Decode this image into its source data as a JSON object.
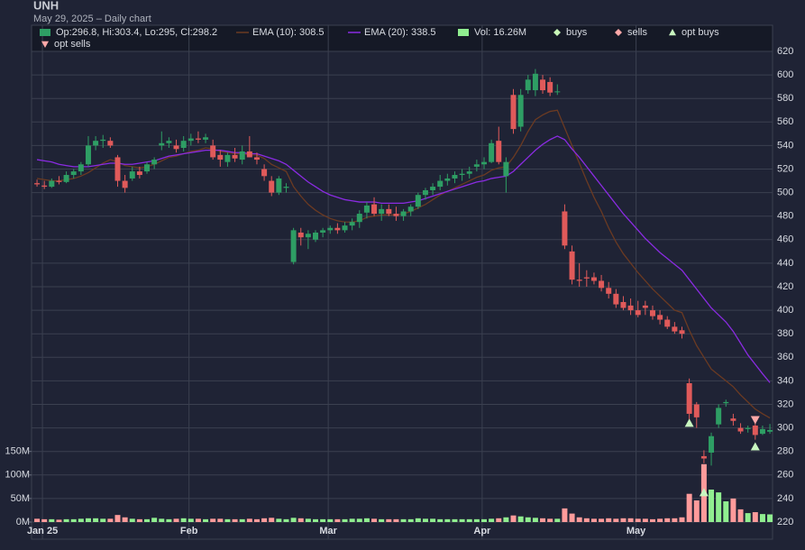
{
  "chart_data": {
    "type": "candlestick",
    "title": "UNH",
    "subtitle": "May 29, 2025 – Daily chart",
    "categories": [
      "Jan 25",
      null,
      null,
      null,
      null,
      null,
      null,
      null,
      null,
      null,
      null,
      null,
      null,
      null,
      null,
      null,
      null,
      null,
      null,
      null,
      "Feb",
      null,
      null,
      null,
      null,
      null,
      null,
      null,
      null,
      null,
      null,
      null,
      null,
      null,
      null,
      null,
      null,
      null,
      null,
      "Mar",
      null,
      null,
      null,
      null,
      null,
      null,
      null,
      null,
      null,
      null,
      null,
      null,
      null,
      null,
      null,
      null,
      null,
      null,
      null,
      null,
      "Apr",
      null,
      null,
      null,
      null,
      null,
      null,
      null,
      null,
      null,
      null,
      null,
      null,
      null,
      null,
      null,
      null,
      null,
      null,
      null,
      null,
      "May",
      null,
      null,
      null,
      null,
      null,
      null,
      null,
      null,
      null,
      null,
      null,
      null,
      null,
      null,
      null,
      null,
      null,
      null,
      null
    ],
    "ohlc": {
      "name": "Op:296.8, Hi:303.4, Lo:295, Cl:298.2",
      "up_color": "#2e9e64",
      "down_color": "#e05a5a",
      "open": [
        508,
        506,
        505,
        510,
        509,
        515,
        518,
        524,
        540,
        544,
        544,
        530,
        510,
        512,
        518,
        518,
        524,
        540,
        542,
        540,
        538,
        544,
        546,
        545,
        540,
        532,
        526,
        532,
        528,
        535,
        530,
        520,
        510,
        500,
        504,
        441,
        466,
        462,
        460,
        466,
        468,
        470,
        468,
        472,
        475,
        483,
        490,
        482,
        486,
        482,
        480,
        484,
        488,
        498,
        502,
        505,
        510,
        512,
        515,
        516,
        522,
        524,
        526,
        544,
        514,
        583,
        556,
        587,
        587,
        596,
        594,
        586,
        484,
        450,
        426,
        428,
        428,
        425,
        419,
        414,
        407,
        404,
        400,
        404,
        400,
        396,
        392,
        386,
        383,
        338,
        320,
        276,
        279,
        303,
        321,
        308,
        300,
        299,
        302,
        295,
        296.8
      ],
      "high": [
        511,
        510,
        512,
        514,
        518,
        520,
        526,
        548,
        548,
        549,
        547,
        532,
        515,
        522,
        522,
        526,
        530,
        552,
        547,
        545,
        548,
        550,
        552,
        550,
        545,
        536,
        534,
        538,
        540,
        548,
        534,
        524,
        514,
        514,
        508,
        470,
        470,
        468,
        468,
        470,
        472,
        474,
        475,
        478,
        485,
        492,
        496,
        490,
        490,
        488,
        486,
        490,
        500,
        504,
        508,
        515,
        516,
        518,
        520,
        522,
        528,
        530,
        545,
        556,
        530,
        588,
        588,
        600,
        605,
        600,
        598,
        592,
        490,
        455,
        440,
        434,
        432,
        430,
        424,
        418,
        412,
        410,
        408,
        408,
        404,
        400,
        395,
        390,
        386,
        342,
        322,
        281,
        296,
        320,
        324,
        312,
        304,
        302,
        304,
        302,
        303.4
      ],
      "low": [
        505,
        503,
        504,
        507,
        508,
        512,
        515,
        522,
        536,
        538,
        538,
        505,
        500,
        510,
        512,
        516,
        520,
        536,
        538,
        534,
        535,
        540,
        542,
        542,
        528,
        522,
        522,
        526,
        524,
        530,
        524,
        510,
        497,
        498,
        500,
        439,
        455,
        452,
        458,
        462,
        465,
        465,
        466,
        468,
        470,
        478,
        480,
        476,
        480,
        476,
        476,
        480,
        486,
        494,
        498,
        502,
        506,
        508,
        510,
        512,
        518,
        520,
        525,
        524,
        500,
        550,
        552,
        584,
        582,
        584,
        582,
        583,
        452,
        422,
        420,
        420,
        422,
        416,
        410,
        402,
        400,
        396,
        394,
        396,
        392,
        388,
        384,
        380,
        376,
        305,
        300,
        270,
        268,
        300,
        318,
        302,
        295,
        296,
        290,
        294,
        295
      ],
      "close": [
        507,
        505,
        510,
        509,
        515,
        518,
        524,
        540,
        544,
        545,
        540,
        510,
        504,
        518,
        515,
        524,
        528,
        542,
        544,
        537,
        544,
        546,
        545,
        547,
        530,
        528,
        532,
        529,
        535,
        530,
        528,
        514,
        500,
        512,
        505,
        468,
        462,
        465,
        466,
        468,
        470,
        468,
        472,
        475,
        482,
        489,
        482,
        486,
        482,
        480,
        484,
        488,
        498,
        502,
        505,
        510,
        512,
        515,
        516,
        518,
        524,
        526,
        542,
        526,
        526,
        554,
        583,
        596,
        601,
        587,
        585,
        586,
        455,
        426,
        425,
        427,
        425,
        419,
        414,
        405,
        402,
        400,
        396,
        402,
        395,
        392,
        386,
        382,
        380,
        312,
        309,
        274,
        293,
        317,
        322,
        306,
        297,
        300,
        294,
        299,
        298.2
      ]
    },
    "volume": {
      "name": "Vol: 16.26M",
      "axis": "y2",
      "color": "#90ee90",
      "up_color": "#90ee90",
      "down_color": "#ff9b9b",
      "values": [
        7,
        6,
        6,
        5,
        6,
        6,
        7,
        8,
        8,
        7,
        7,
        15,
        10,
        7,
        6,
        6,
        9,
        7,
        6,
        7,
        8,
        7,
        7,
        6,
        7,
        7,
        6,
        6,
        6,
        7,
        6,
        8,
        9,
        7,
        6,
        9,
        8,
        7,
        6,
        6,
        6,
        6,
        6,
        7,
        7,
        8,
        7,
        6,
        6,
        6,
        6,
        6,
        8,
        7,
        7,
        6,
        6,
        6,
        6,
        6,
        6,
        6,
        7,
        8,
        10,
        14,
        12,
        10,
        9,
        8,
        7,
        7,
        29,
        18,
        10,
        8,
        7,
        7,
        8,
        7,
        8,
        8,
        7,
        7,
        6,
        7,
        8,
        8,
        10,
        60,
        46,
        123,
        69,
        63,
        44,
        50,
        27,
        19,
        21,
        17,
        16.26
      ]
    },
    "series": [
      {
        "name": "EMA (10): 308.5",
        "color": "#6b3a22",
        "values": [
          512,
          511,
          510,
          510,
          511,
          512,
          514,
          517,
          521,
          525,
          528,
          526,
          523,
          522,
          521,
          522,
          524,
          527,
          530,
          531,
          533,
          535,
          536,
          538,
          537,
          535,
          534,
          533,
          533,
          532,
          532,
          529,
          524,
          521,
          518,
          505,
          497,
          490,
          485,
          481,
          478,
          476,
          475,
          475,
          476,
          479,
          480,
          481,
          481,
          481,
          482,
          484,
          487,
          490,
          494,
          498,
          501,
          504,
          507,
          510,
          513,
          515,
          519,
          521,
          522,
          530,
          540,
          552,
          562,
          566,
          569,
          570,
          555,
          540,
          525,
          510,
          496,
          484,
          470,
          458,
          448,
          440,
          432,
          425,
          418,
          412,
          406,
          400,
          398,
          383,
          370,
          360,
          350,
          345,
          340,
          335,
          328,
          322,
          316,
          312,
          308.5
        ]
      },
      {
        "name": "EMA (20): 338.5",
        "color": "#8a2be2",
        "values": [
          528,
          527,
          526,
          524,
          523,
          522,
          522,
          522,
          523,
          524,
          525,
          525,
          524,
          524,
          525,
          526,
          527,
          529,
          531,
          532,
          533,
          534,
          535,
          536,
          536,
          536,
          535,
          534,
          534,
          533,
          533,
          531,
          529,
          527,
          524,
          519,
          514,
          509,
          505,
          501,
          498,
          496,
          494,
          493,
          492,
          492,
          492,
          491,
          491,
          491,
          491,
          492,
          493,
          495,
          497,
          499,
          501,
          503,
          505,
          507,
          509,
          510,
          512,
          513,
          514,
          518,
          524,
          530,
          536,
          541,
          545,
          548,
          545,
          537,
          530,
          522,
          514,
          506,
          498,
          490,
          482,
          475,
          468,
          461,
          455,
          449,
          444,
          439,
          434,
          426,
          418,
          410,
          402,
          396,
          390,
          382,
          372,
          362,
          354,
          346,
          338.5
        ]
      }
    ],
    "markers": [
      {
        "name": "buys",
        "color": "#c8f7b8",
        "shape": "diamond"
      },
      {
        "name": "sells",
        "color": "#ffa8a8",
        "shape": "diamond"
      },
      {
        "name": "opt buys",
        "color": "#c8f7c0",
        "shape": "triangle-up",
        "values": [
          null,
          null,
          null,
          null,
          null,
          null,
          null,
          null,
          null,
          null,
          null,
          null,
          null,
          null,
          null,
          null,
          null,
          null,
          null,
          null,
          null,
          null,
          null,
          null,
          null,
          null,
          null,
          null,
          null,
          null,
          null,
          null,
          null,
          null,
          null,
          null,
          null,
          null,
          null,
          null,
          null,
          null,
          null,
          null,
          null,
          null,
          null,
          null,
          null,
          null,
          null,
          null,
          null,
          null,
          null,
          null,
          null,
          null,
          null,
          null,
          null,
          null,
          null,
          null,
          null,
          null,
          null,
          null,
          null,
          null,
          null,
          null,
          null,
          null,
          null,
          null,
          null,
          null,
          null,
          null,
          null,
          null,
          null,
          null,
          null,
          null,
          null,
          null,
          null,
          304,
          null,
          245,
          null,
          null,
          null,
          null,
          null,
          null,
          284,
          null,
          null
        ]
      },
      {
        "name": "opt sells",
        "color": "#ffa8a8",
        "shape": "triangle-down",
        "values": [
          null,
          null,
          null,
          null,
          null,
          null,
          null,
          null,
          null,
          null,
          null,
          null,
          null,
          null,
          null,
          null,
          null,
          null,
          null,
          null,
          null,
          null,
          null,
          null,
          null,
          null,
          null,
          null,
          null,
          null,
          null,
          null,
          null,
          null,
          null,
          null,
          null,
          null,
          null,
          null,
          null,
          null,
          null,
          null,
          null,
          null,
          null,
          null,
          null,
          null,
          null,
          null,
          null,
          null,
          null,
          null,
          null,
          null,
          null,
          null,
          null,
          null,
          null,
          null,
          null,
          null,
          null,
          null,
          null,
          null,
          null,
          null,
          null,
          null,
          null,
          null,
          null,
          null,
          null,
          null,
          null,
          null,
          null,
          null,
          null,
          null,
          null,
          null,
          null,
          null,
          null,
          null,
          null,
          null,
          null,
          null,
          null,
          null,
          307,
          null,
          null
        ]
      }
    ],
    "ylim": [
      220,
      620
    ],
    "yticks": [
      220,
      240,
      260,
      280,
      300,
      320,
      340,
      360,
      380,
      400,
      420,
      440,
      460,
      480,
      500,
      520,
      540,
      560,
      580,
      600,
      620
    ],
    "y2lim": [
      0,
      1000
    ],
    "y2ticks": [
      {
        "value": 0,
        "label": "0M"
      },
      {
        "value": 50,
        "label": "50M"
      },
      {
        "value": 100,
        "label": "100M"
      },
      {
        "value": 150,
        "label": "150M"
      }
    ],
    "grid": true
  }
}
